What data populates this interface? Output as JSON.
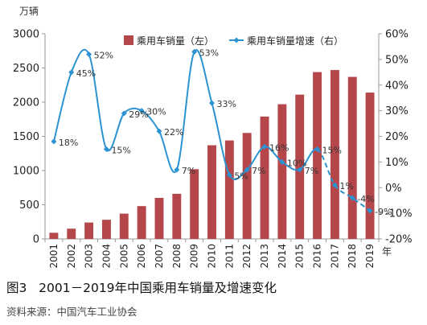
{
  "chart_data": {
    "type": "bar+line",
    "categories": [
      "2001",
      "2002",
      "2003",
      "2004",
      "2005",
      "2006",
      "2007",
      "2008",
      "2009",
      "2010",
      "2011",
      "2012",
      "2013",
      "2014",
      "2015",
      "2016",
      "2017",
      "2018",
      "2019"
    ],
    "series": [
      {
        "name": "乘用车销量（左）",
        "type": "bar",
        "axis": "left",
        "color": "#b5474b",
        "values": [
          90,
          150,
          240,
          280,
          370,
          480,
          600,
          660,
          1020,
          1370,
          1440,
          1550,
          1790,
          1970,
          2110,
          2440,
          2470,
          2370,
          2140
        ]
      },
      {
        "name": "乘用车销量增速（右）",
        "type": "line",
        "axis": "right",
        "color": "#2b93d1",
        "values": [
          18,
          45,
          52,
          15,
          29,
          30,
          22,
          7,
          53,
          33,
          5,
          7,
          16,
          10,
          7,
          15,
          1,
          -4,
          -9
        ],
        "labels": [
          "18%",
          "45%",
          "52%",
          "15%",
          "29%",
          "30%",
          "22%",
          "7%",
          "53%",
          "33%",
          "5%",
          "7%",
          "16%",
          "10%",
          "7%",
          "15%",
          "1%",
          "-4%",
          "-9%"
        ],
        "dashed_from_index": 15
      }
    ],
    "left_axis": {
      "unit": "万辆",
      "min": 0,
      "max": 3000,
      "step": 500,
      "ticks": [
        "0",
        "500",
        "1000",
        "1500",
        "2000",
        "2500",
        "3000"
      ]
    },
    "right_axis": {
      "min": -20,
      "max": 60,
      "step": 10,
      "ticks": [
        "-20%",
        "-10%",
        "0%",
        "10%",
        "20%",
        "30%",
        "40%",
        "50%",
        "60%"
      ]
    },
    "x_unit": "年",
    "legend_position": "top-center",
    "grid": false
  },
  "caption": {
    "figure_label": "图3",
    "text": "2001－2019年中国乘用车销量及增速变化"
  },
  "source_line": "资料来源：中国汽车工业协会"
}
